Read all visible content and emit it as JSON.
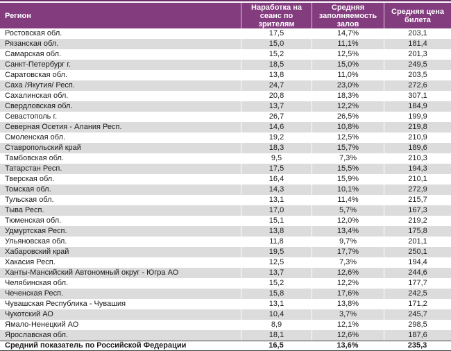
{
  "colors": {
    "header_bg": "#833c7e",
    "accent_dark": "#6f2d6a",
    "alt_row_bg": "#dcdcdc",
    "total_border": "#404040",
    "header_text": "#ffffff",
    "body_text": "#1a1a1a"
  },
  "table": {
    "columns": [
      "Регион",
      "Наработка на сеанс по зрителям",
      "Средняя заполняемость залов",
      "Средняя цена билета"
    ],
    "rows": [
      {
        "region": "Ростовская обл.",
        "sessions": "17,5",
        "occupancy": "14,7%",
        "price": "203,1"
      },
      {
        "region": "Рязанская обл.",
        "sessions": "15,0",
        "occupancy": "11,1%",
        "price": "181,4"
      },
      {
        "region": "Самарская обл.",
        "sessions": "15,2",
        "occupancy": "12,5%",
        "price": "201,3"
      },
      {
        "region": "Санкт-Петербург г.",
        "sessions": "18,5",
        "occupancy": "15,0%",
        "price": "249,5"
      },
      {
        "region": "Саратовская обл.",
        "sessions": "13,8",
        "occupancy": "11,0%",
        "price": "203,5"
      },
      {
        "region": "Саха /Якутия/ Респ.",
        "sessions": "24,7",
        "occupancy": "23,0%",
        "price": "272,6"
      },
      {
        "region": "Сахалинская обл.",
        "sessions": "20,8",
        "occupancy": "18,3%",
        "price": "307,1"
      },
      {
        "region": "Свердловская обл.",
        "sessions": "13,7",
        "occupancy": "12,2%",
        "price": "184,9"
      },
      {
        "region": "Севастополь г.",
        "sessions": "26,7",
        "occupancy": "26,5%",
        "price": "199,9"
      },
      {
        "region": "Северная Осетия - Алания Респ.",
        "sessions": "14,6",
        "occupancy": "10,8%",
        "price": "219,8"
      },
      {
        "region": "Смоленская обл.",
        "sessions": "19,2",
        "occupancy": "12,5%",
        "price": "210,9"
      },
      {
        "region": "Ставропольский край",
        "sessions": "18,3",
        "occupancy": "15,7%",
        "price": "189,6"
      },
      {
        "region": "Тамбовская обл.",
        "sessions": "9,5",
        "occupancy": "7,3%",
        "price": "210,3"
      },
      {
        "region": "Татарстан Респ.",
        "sessions": "17,5",
        "occupancy": "15,5%",
        "price": "194,3"
      },
      {
        "region": "Тверская обл.",
        "sessions": "16,4",
        "occupancy": "15,9%",
        "price": "210,1"
      },
      {
        "region": "Томская обл.",
        "sessions": "14,3",
        "occupancy": "10,1%",
        "price": "272,9"
      },
      {
        "region": "Тульская обл.",
        "sessions": "13,1",
        "occupancy": "11,4%",
        "price": "215,7"
      },
      {
        "region": "Тыва Респ.",
        "sessions": "17,0",
        "occupancy": "5,7%",
        "price": "167,3"
      },
      {
        "region": "Тюменская обл.",
        "sessions": "15,1",
        "occupancy": "12,0%",
        "price": "219,2"
      },
      {
        "region": "Удмуртская Респ.",
        "sessions": "13,8",
        "occupancy": "13,4%",
        "price": "175,8"
      },
      {
        "region": "Ульяновская обл.",
        "sessions": "11,8",
        "occupancy": "9,7%",
        "price": "201,1"
      },
      {
        "region": "Хабаровский край",
        "sessions": "19,5",
        "occupancy": "17,7%",
        "price": "250,1"
      },
      {
        "region": "Хакасия Респ.",
        "sessions": "12,5",
        "occupancy": "7,3%",
        "price": "194,4"
      },
      {
        "region": "Ханты-Мансийский Автономный округ - Югра АО",
        "sessions": "13,7",
        "occupancy": "12,6%",
        "price": "244,6"
      },
      {
        "region": "Челябинская обл.",
        "sessions": "15,2",
        "occupancy": "12,2%",
        "price": "177,7"
      },
      {
        "region": "Чеченская Респ.",
        "sessions": "15,8",
        "occupancy": "17,6%",
        "price": "242,5"
      },
      {
        "region": "Чувашская Республика - Чувашия",
        "sessions": "13,1",
        "occupancy": "13,8%",
        "price": "171,2"
      },
      {
        "region": "Чукотский АО",
        "sessions": "10,4",
        "occupancy": "3,7%",
        "price": "245,7"
      },
      {
        "region": "Ямало-Ненецкий АО",
        "sessions": "8,9",
        "occupancy": "12,1%",
        "price": "298,5"
      },
      {
        "region": "Ярославская обл.",
        "sessions": "18,1",
        "occupancy": "12,6%",
        "price": "187,6"
      }
    ],
    "total": {
      "region": "Средний показатель по Российской Федерации",
      "sessions": "16,5",
      "occupancy": "13,6%",
      "price": "235,3"
    }
  }
}
